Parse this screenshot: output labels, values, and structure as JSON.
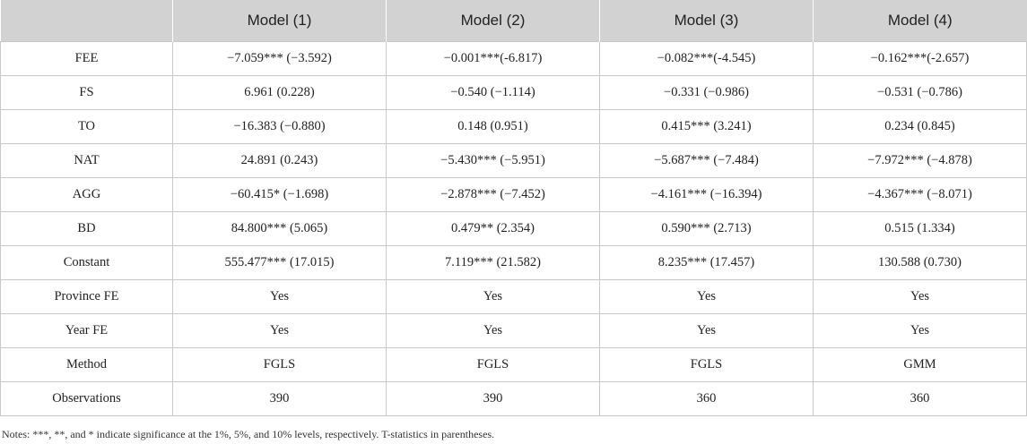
{
  "table": {
    "headers": [
      "",
      "Model (1)",
      "Model (2)",
      "Model (3)",
      "Model (4)"
    ],
    "rows": [
      [
        "FEE",
        "−7.059*** (−3.592)",
        "−0.001***(-6.817)",
        "−0.082***(-4.545)",
        "−0.162***(-2.657)"
      ],
      [
        "FS",
        "6.961 (0.228)",
        "−0.540 (−1.114)",
        "−0.331 (−0.986)",
        "−0.531 (−0.786)"
      ],
      [
        "TO",
        "−16.383 (−0.880)",
        "0.148 (0.951)",
        "0.415*** (3.241)",
        "0.234 (0.845)"
      ],
      [
        "NAT",
        "24.891 (0.243)",
        "−5.430*** (−5.951)",
        "−5.687*** (−7.484)",
        "−7.972*** (−4.878)"
      ],
      [
        "AGG",
        "−60.415* (−1.698)",
        "−2.878*** (−7.452)",
        "−4.161*** (−16.394)",
        "−4.367*** (−8.071)"
      ],
      [
        "BD",
        "84.800*** (5.065)",
        "0.479** (2.354)",
        "0.590*** (2.713)",
        "0.515 (1.334)"
      ],
      [
        "Constant",
        "555.477*** (17.015)",
        "7.119*** (21.582)",
        "8.235*** (17.457)",
        "130.588 (0.730)"
      ],
      [
        "Province FE",
        "Yes",
        "Yes",
        "Yes",
        "Yes"
      ],
      [
        "Year FE",
        "Yes",
        "Yes",
        "Yes",
        "Yes"
      ],
      [
        "Method",
        "FGLS",
        "FGLS",
        "FGLS",
        "GMM"
      ],
      [
        "Observations",
        "390",
        "390",
        "360",
        "360"
      ]
    ]
  },
  "notes": "Notes: ***, **, and * indicate significance at the 1%, 5%, and 10% levels, respectively. T-statistics in parentheses."
}
